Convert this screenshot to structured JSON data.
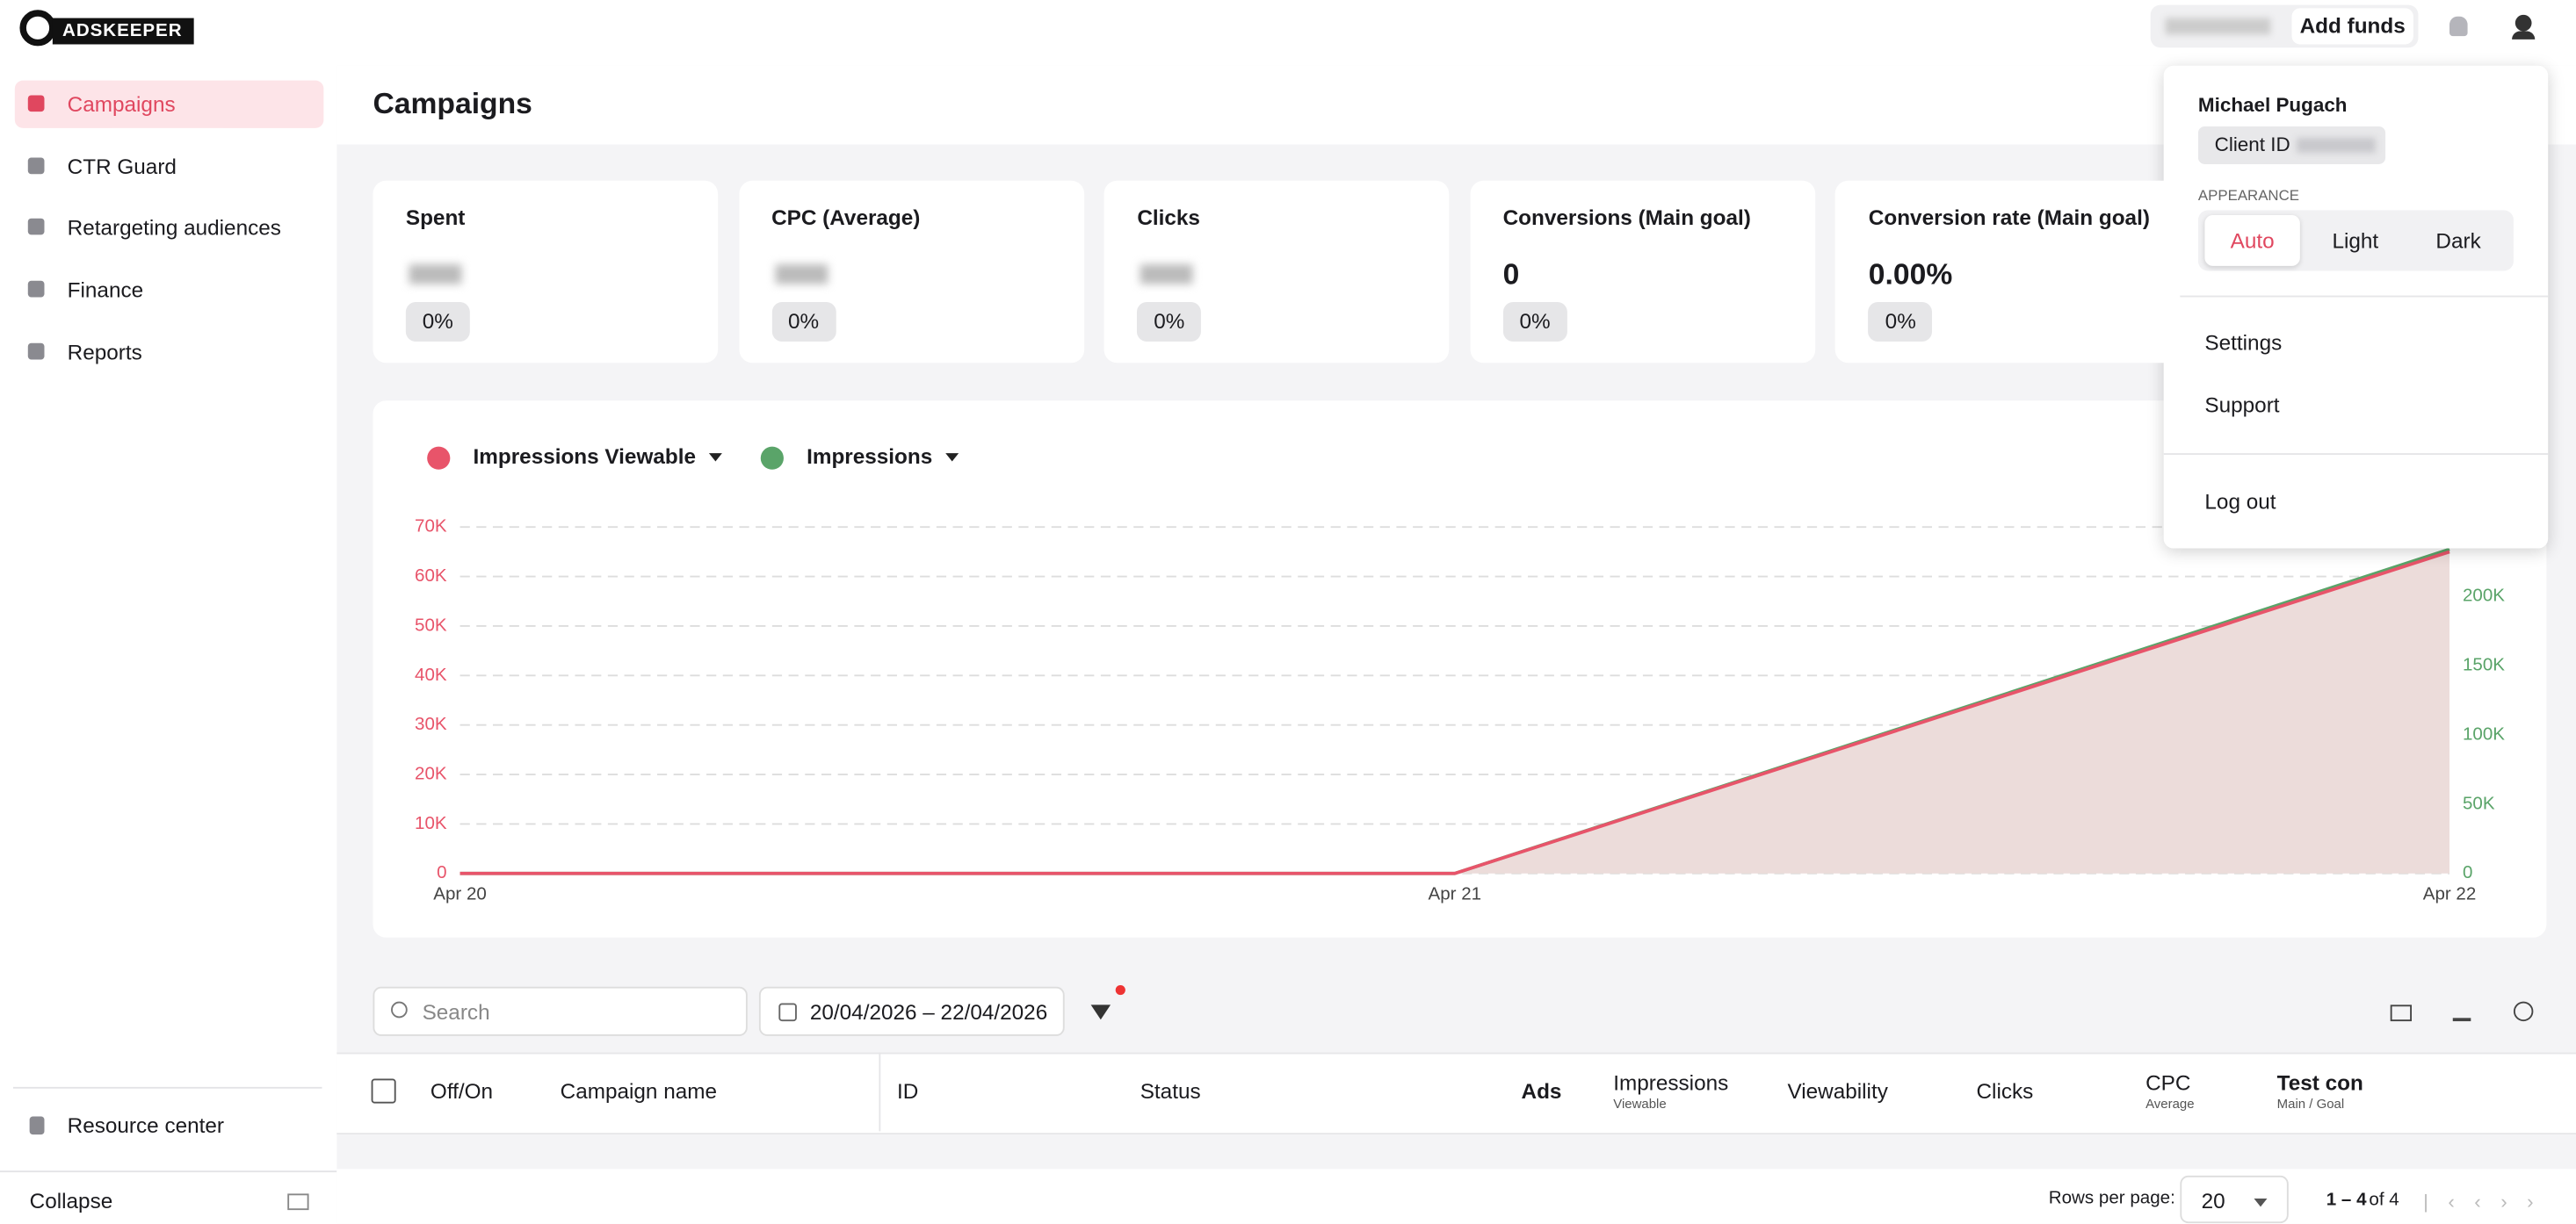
{
  "header": {
    "logo": "ADSKEEPER",
    "add_funds": "Add funds"
  },
  "sidebar": {
    "items": [
      "Campaigns",
      "CTR Guard",
      "Retargeting audiences",
      "Finance",
      "Reports"
    ],
    "active_index": 0,
    "resource_center": "Resource center",
    "collapse": "Collapse"
  },
  "page_title": "Campaigns",
  "metrics": [
    {
      "label": "Spent",
      "change": "0%"
    },
    {
      "label": "CPC (Average)",
      "change": "0%"
    },
    {
      "label": "Clicks",
      "change": "0%"
    },
    {
      "label": "Conversions (Main goal)",
      "value": "0",
      "change": "0%"
    },
    {
      "label": "Conversion rate (Main goal)",
      "value": "0.00%",
      "change": "0%"
    }
  ],
  "chart": {
    "type": "area",
    "x": [
      "Apr 20",
      "Apr 21",
      "Apr 22"
    ],
    "ylim": [
      0,
      70000
    ],
    "yticks": [
      0,
      {
        "value": 10000,
        "label": "10K"
      },
      {
        "value": 20000,
        "label": "20K"
      },
      {
        "value": 30000,
        "label": "30K"
      },
      {
        "value": 40000,
        "label": "40K"
      },
      {
        "value": 50000,
        "label": "50K"
      },
      {
        "value": 60000,
        "label": "60K"
      },
      {
        "value": 70000,
        "label": "70K"
      }
    ],
    "y2lim": [
      0,
      250000
    ],
    "y2ticks": [
      0,
      {
        "value": 50000,
        "label": "50K"
      },
      {
        "value": 100000,
        "label": "100K"
      },
      {
        "value": 150000,
        "label": "150K"
      },
      {
        "value": 200000,
        "label": "200K"
      }
    ],
    "grid": true,
    "series": [
      {
        "name": "Impressions Viewable",
        "color": "#e8546a",
        "values": [
          0,
          0,
          65000
        ]
      },
      {
        "name": "Impressions",
        "color": "#5aa469",
        "axis": "y2",
        "values": [
          0,
          0,
          234000
        ]
      }
    ]
  },
  "toolbar": {
    "search_placeholder": "Search",
    "date_range": "20/04/2026 – 22/04/2026"
  },
  "table": {
    "columns": [
      {
        "label": "Off/On"
      },
      {
        "label": "Campaign name"
      },
      {
        "label": "ID"
      },
      {
        "label": "Status"
      },
      {
        "label": "Ads"
      },
      {
        "label": "Impressions",
        "sub": "Viewable"
      },
      {
        "label": "Viewability"
      },
      {
        "label": "Clicks"
      },
      {
        "label": "CPC",
        "sub": "Average"
      },
      {
        "label": "Test con",
        "sub": "Main / Goal"
      }
    ]
  },
  "pagination": {
    "rows_per_page_label": "Rows per page:",
    "rows_per_page": 20,
    "range": "1 – 4",
    "total": "of 4"
  },
  "user_menu": {
    "name": "Michael Pugach",
    "client_id_label": "Client ID",
    "appearance_label": "APPEARANCE",
    "appearance_options": [
      "Auto",
      "Light",
      "Dark"
    ],
    "selected_index": 0,
    "items": [
      "Settings",
      "Support"
    ],
    "logout": "Log out"
  }
}
